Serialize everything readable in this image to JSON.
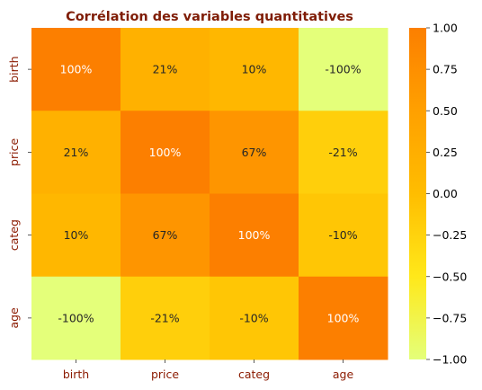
{
  "chart_data": {
    "type": "heatmap",
    "title": "Corrélation des variables quantitatives",
    "x_categories": [
      "birth",
      "price",
      "categ",
      "age"
    ],
    "y_categories": [
      "birth",
      "price",
      "categ",
      "age"
    ],
    "values": [
      [
        1.0,
        0.21,
        0.1,
        -1.0
      ],
      [
        0.21,
        1.0,
        0.67,
        -0.21
      ],
      [
        0.1,
        0.67,
        1.0,
        -0.1
      ],
      [
        -1.0,
        -0.21,
        -0.1,
        1.0
      ]
    ],
    "annotations": [
      [
        "100%",
        "21%",
        "10%",
        "-100%"
      ],
      [
        "21%",
        "100%",
        "67%",
        "-21%"
      ],
      [
        "10%",
        "67%",
        "100%",
        "-10%"
      ],
      [
        "-100%",
        "-21%",
        "-10%",
        "100%"
      ]
    ],
    "colorbar": {
      "range": [
        -1.0,
        1.0
      ],
      "ticks": [
        1.0,
        0.75,
        0.5,
        0.25,
        0.0,
        -0.25,
        -0.5,
        -0.75,
        -1.0
      ],
      "tick_labels": [
        "1.00",
        "0.75",
        "0.50",
        "0.25",
        "0.00",
        "−0.25",
        "−0.50",
        "−0.75",
        "−1.00"
      ],
      "colormap": "Wistia"
    },
    "colors": {
      "title": "#7f1d06",
      "tick_labels": "#8b1a00",
      "annot_light": "#ffffff",
      "annot_dark": "#262626"
    }
  }
}
